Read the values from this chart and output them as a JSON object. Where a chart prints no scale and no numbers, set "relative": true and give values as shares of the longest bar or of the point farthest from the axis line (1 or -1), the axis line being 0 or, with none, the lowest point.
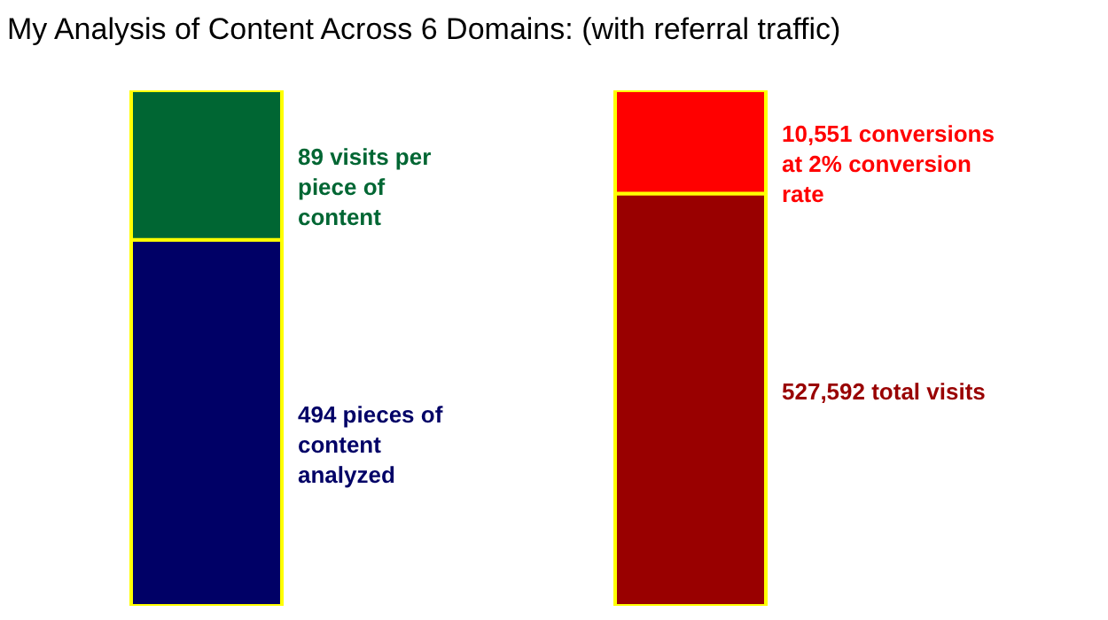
{
  "chart_data": {
    "type": "bar",
    "title": "My Analysis of Content Across 6 Domains: (with referral traffic)",
    "categories": [
      null,
      null
    ],
    "stacked": true,
    "relative": true,
    "series": [
      {
        "colors": [
          "#000066",
          "#990000"
        ],
        "values": [
          0.71,
          0.8
        ]
      },
      {
        "colors": [
          "#006633",
          "#ff0000"
        ],
        "values": [
          0.29,
          0.2
        ]
      }
    ],
    "annotations": [
      "89 visits per piece of content",
      "494 pieces of content analyzed",
      "10,551 conversions at 2% conversion rate",
      "527,592 total visits"
    ]
  }
}
